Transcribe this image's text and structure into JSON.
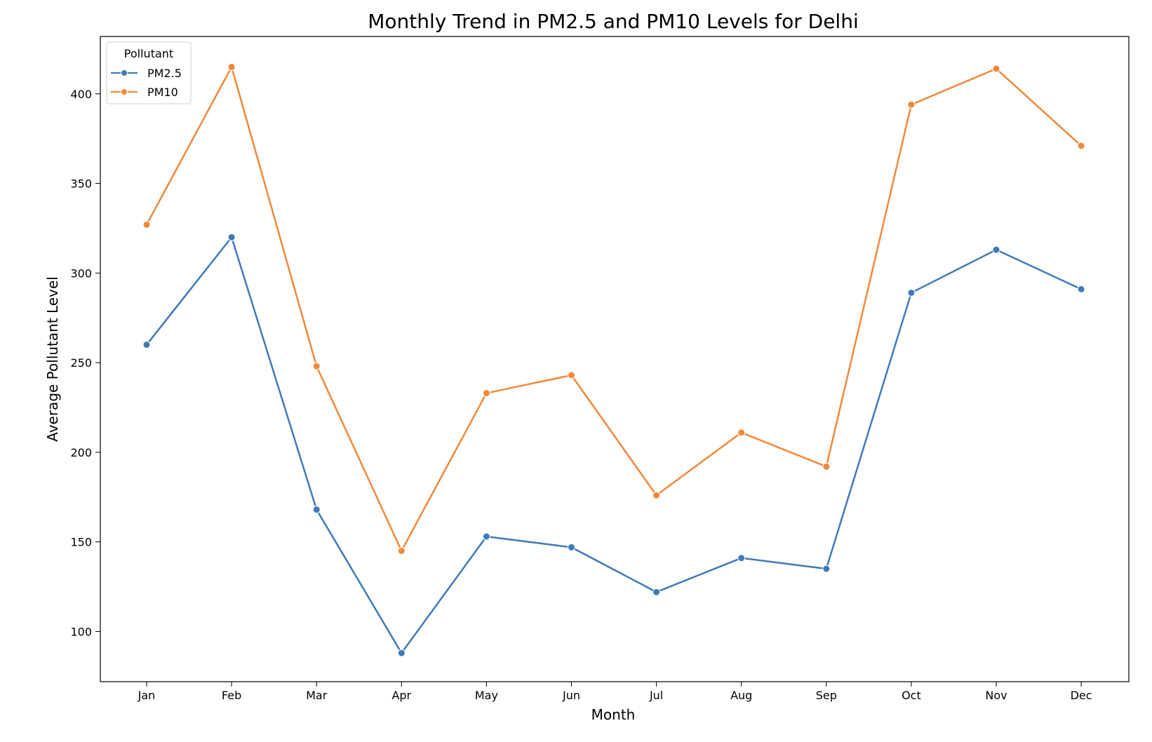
{
  "chart_data": {
    "type": "line",
    "title": "Monthly Trend in PM2.5 and PM10 Levels for Delhi",
    "xlabel": "Month",
    "ylabel": "Average Pollutant Level",
    "categories": [
      "Jan",
      "Feb",
      "Mar",
      "Apr",
      "May",
      "Jun",
      "Jul",
      "Aug",
      "Sep",
      "Oct",
      "Nov",
      "Dec"
    ],
    "ylim": [
      72,
      432
    ],
    "yticks": [
      100,
      150,
      200,
      250,
      300,
      350,
      400
    ],
    "grid": false,
    "legend": {
      "title": "Pollutant",
      "placement": "top-left"
    },
    "series": [
      {
        "name": "PM2.5",
        "color": "#3f7ab8",
        "values": [
          260,
          320,
          168,
          88,
          153,
          147,
          122,
          141,
          135,
          289,
          313,
          291
        ]
      },
      {
        "name": "PM10",
        "color": "#f0883a",
        "values": [
          327,
          415,
          248,
          145,
          233,
          243,
          176,
          211,
          192,
          394,
          414,
          371
        ]
      }
    ]
  }
}
